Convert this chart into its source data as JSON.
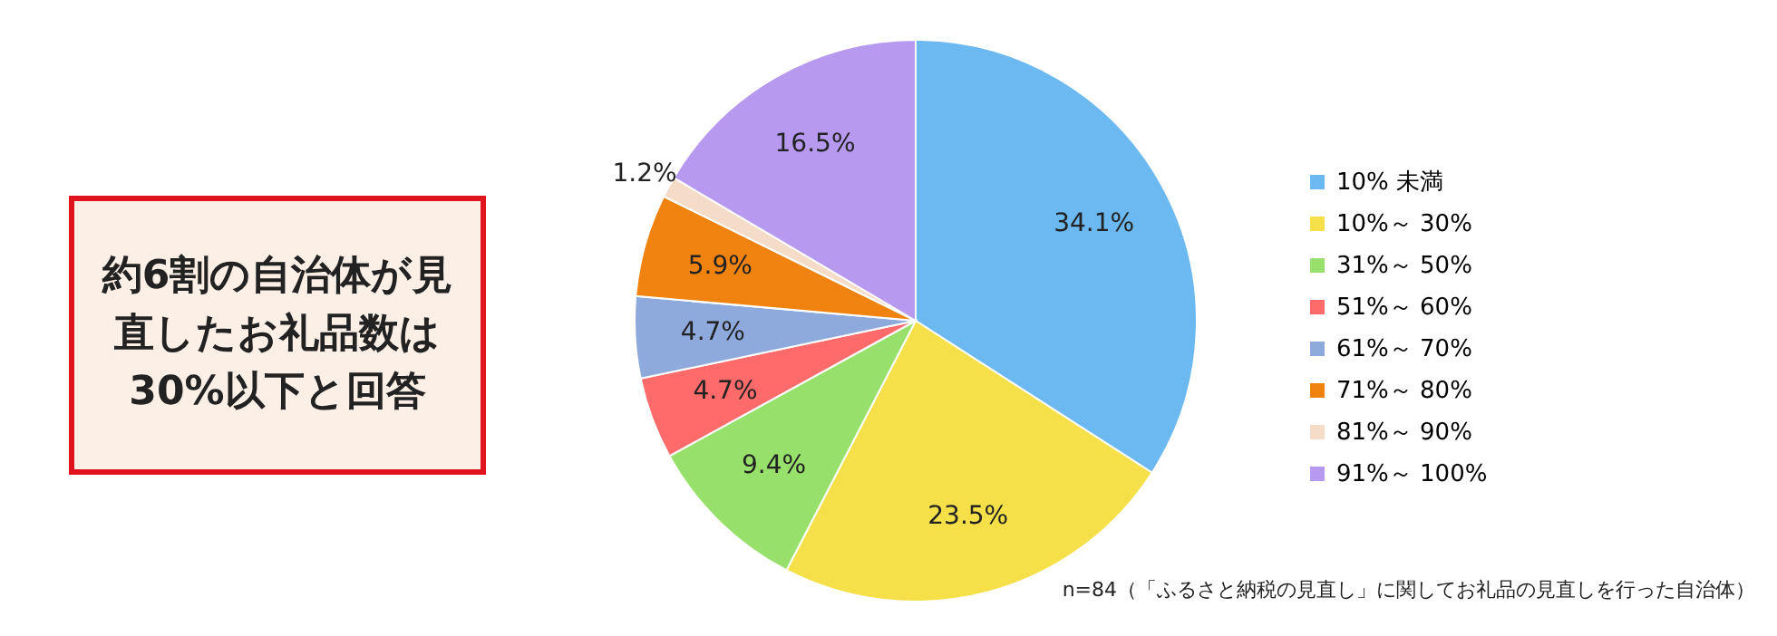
{
  "chart_data": {
    "type": "pie",
    "categories": [
      "10% 未満",
      "10%～ 30%",
      "31%～ 50%",
      "51%～ 60%",
      "61%～ 70%",
      "71%～ 80%",
      "81%～ 90%",
      "91%～ 100%"
    ],
    "values": [
      34.1,
      23.5,
      9.4,
      4.7,
      4.7,
      5.9,
      1.2,
      16.5
    ],
    "value_labels": [
      "34.1%",
      "23.5%",
      "9.4%",
      "4.7%",
      "4.7%",
      "5.9%",
      "1.2%",
      "16.5%"
    ],
    "colors": [
      "#6cb8f0",
      "#f5e04a",
      "#98e06c",
      "#ff6b6b",
      "#8eaadc",
      "#f0820f",
      "#f5dcc8",
      "#b899f0"
    ],
    "legend": "right",
    "annotations": [
      "約6割の自治体が見直したお礼品数は30%以下と回答",
      "n=84（「ふるさと納税の見直し」に関してお礼品の見直しを行った自治体）"
    ]
  }
}
